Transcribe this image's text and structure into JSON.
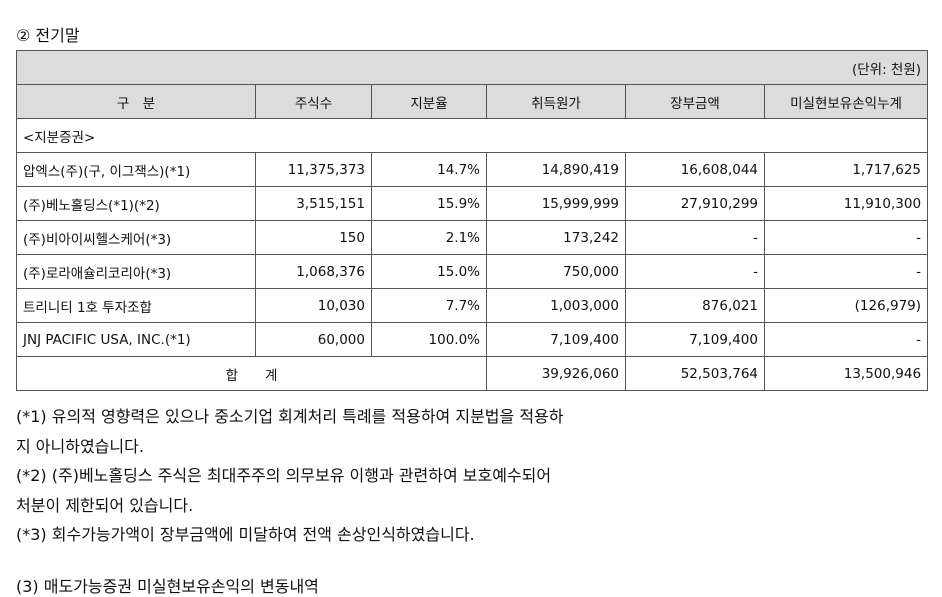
{
  "heading": "② 전기말",
  "table": {
    "unit": "(단위: 천원)",
    "headers": [
      "구　분",
      "주식수",
      "지분율",
      "취득원가",
      "장부금액",
      "미실현보유손익누계"
    ],
    "section": "<지분증권>",
    "rows": [
      {
        "name": "압엑스(주)(구, 이그잭스)(*1)",
        "shares": "11,375,373",
        "ratio": "14.7%",
        "cost": "14,890,419",
        "book": "16,608,044",
        "unrealized": "1,717,625"
      },
      {
        "name": "(주)베노홀딩스(*1)(*2)",
        "shares": "3,515,151",
        "ratio": "15.9%",
        "cost": "15,999,999",
        "book": "27,910,299",
        "unrealized": "11,910,300"
      },
      {
        "name": "(주)비아이씨헬스케어(*3)",
        "shares": "150",
        "ratio": "2.1%",
        "cost": "173,242",
        "book": "-",
        "unrealized": "-"
      },
      {
        "name": "(주)로라애슐리코리아(*3)",
        "shares": "1,068,376",
        "ratio": "15.0%",
        "cost": "750,000",
        "book": "-",
        "unrealized": "-"
      },
      {
        "name": "트리니티 1호 투자조합",
        "shares": "10,030",
        "ratio": "7.7%",
        "cost": "1,003,000",
        "book": "876,021",
        "unrealized": "(126,979)"
      },
      {
        "name": "JNJ PACIFIC USA, INC.(*1)",
        "shares": "60,000",
        "ratio": "100.0%",
        "cost": "7,109,400",
        "book": "7,109,400",
        "unrealized": "-"
      }
    ],
    "total": {
      "label": "합　　계",
      "cost": "39,926,060",
      "book": "52,503,764",
      "unrealized": "13,500,946"
    }
  },
  "notes": [
    "(*1) 유의적 영향력은 있으나 중소기업 회계처리 특례를 적용하여 지분법을 적용하",
    "지 아니하였습니다.",
    "(*2) (주)베노홀딩스 주식은 최대주주의 의무보유 이행과 관련하여 보호예수되어",
    "처분이 제한되어 있습니다.",
    "(*3) 회수가능가액이 장부금액에 미달하여 전액 손상인식하였습니다."
  ],
  "footer": "(3) 매도가능증권 미실현보유손익의 변동내역"
}
